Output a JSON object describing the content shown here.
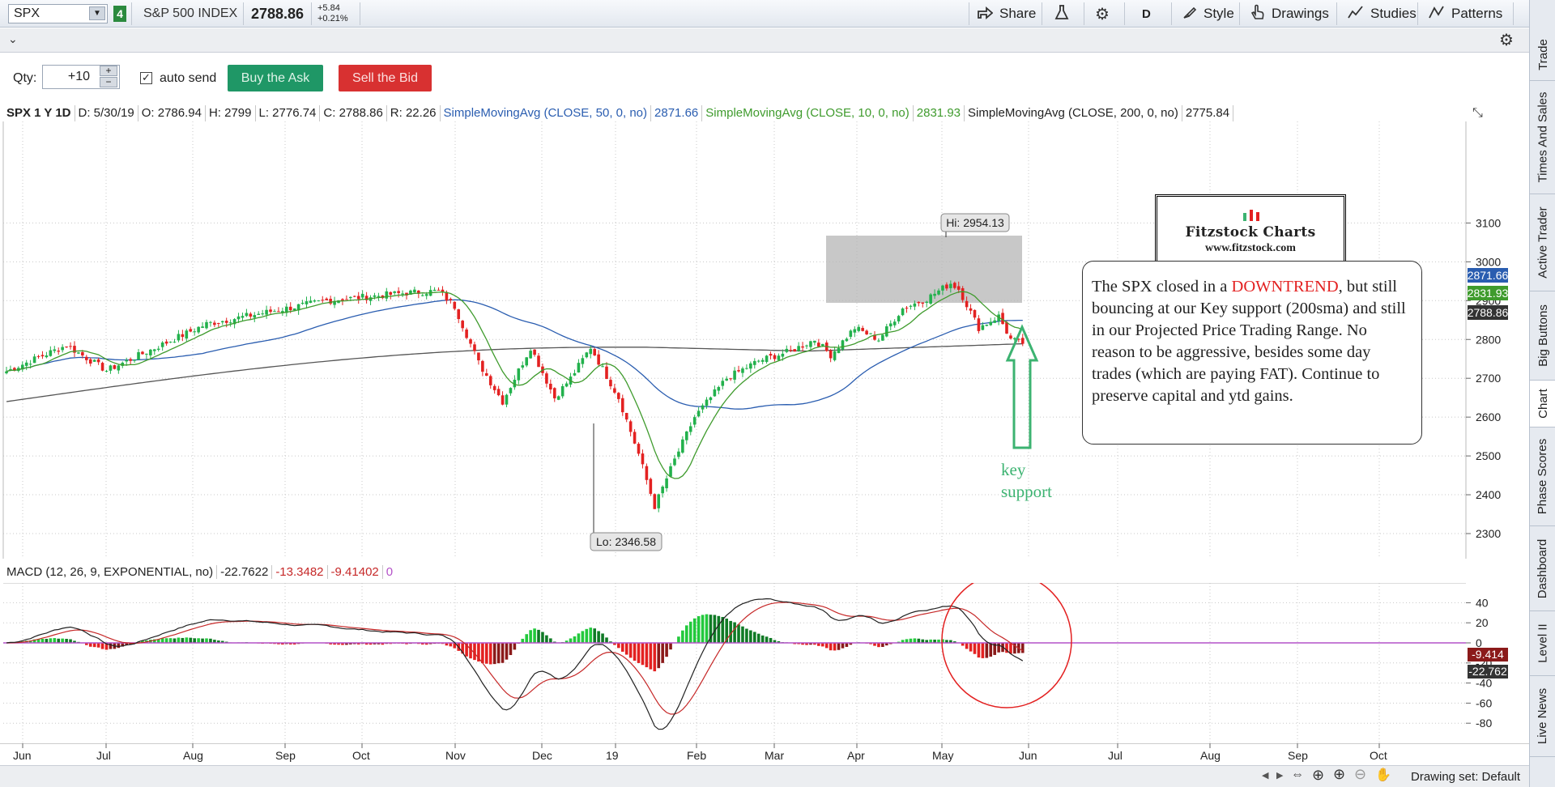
{
  "toolbar": {
    "symbol": "SPX",
    "link_number": "4",
    "description": "S&P 500 INDEX",
    "last_price": "2788.86",
    "net_change": "+5.84",
    "pct_change": "+0.21%",
    "share_label": "Share",
    "period_label": "D",
    "style_label": "Style",
    "drawings_label": "Drawings",
    "studies_label": "Studies",
    "patterns_label": "Patterns"
  },
  "order": {
    "qty_label": "Qty:",
    "qty_value": "+10",
    "auto_send_label": "auto send",
    "buy_label": "Buy the Ask",
    "sell_label": "Sell the Bid"
  },
  "info": {
    "symbol_period": "SPX 1 Y 1D",
    "date": "D: 5/30/19",
    "open": "O: 2786.94",
    "high": "H: 2799",
    "low": "L: 2776.74",
    "close": "C: 2788.86",
    "range": "R: 22.26",
    "sma50_label": "SimpleMovingAvg (CLOSE, 50, 0, no)",
    "sma50_value": "2871.66",
    "sma10_label": "SimpleMovingAvg (CLOSE, 10, 0, no)",
    "sma10_value": "2831.93",
    "sma200_label": "SimpleMovingAvg (CLOSE, 200, 0, no)",
    "sma200_value": "2775.84"
  },
  "macd_info": {
    "label": "MACD (12, 26, 9, EXPONENTIAL, no)",
    "value": "-22.7622",
    "avg": "-13.3482",
    "diff": "-9.41402",
    "zero": "0"
  },
  "annotations": {
    "hi_label": "Hi: 2954.13",
    "lo_label": "Lo: 2346.58",
    "key_support": "key support",
    "note_before": "The SPX closed in a ",
    "note_highlight": "DOWNTREND",
    "note_after": ", but still bouncing at our Key support (200sma) and still in our Projected Price Trading Range.  No reason to be aggressive, besides some day trades (which are paying FAT).  Continue to preserve capital and ytd gains.",
    "logo_title": "Fitzstock Charts",
    "logo_url": "www.fitzstock.com"
  },
  "price_badges": {
    "sma50": "2871.66",
    "sma10": "2831.93",
    "close": "2788.86",
    "macd_diff": "-9.414",
    "macd_value": "-22.762"
  },
  "colors": {
    "up": "#22b14c",
    "down": "#e32121",
    "sma50": "#2a5db0",
    "sma10": "#3f9b2d",
    "sma200": "#555555",
    "macd_value": "#222222",
    "macd_avg": "#c62828",
    "zero_line": "#b452c8"
  },
  "side_tabs": [
    "Trade",
    "Times And Sales",
    "Active Trader",
    "Big Buttons",
    "Chart",
    "Phase Scores",
    "Dashboard",
    "Level II",
    "Live News"
  ],
  "bottom": {
    "drawing_set": "Drawing set: Default"
  },
  "chart_data": [
    {
      "type": "candlestick",
      "title": "SPX 1 Y 1D",
      "x_ticks": [
        "Jun",
        "Jul",
        "Aug",
        "Sep",
        "Oct",
        "Nov",
        "Dec",
        "19",
        "Feb",
        "Mar",
        "Apr",
        "May",
        "Jun",
        "Jul",
        "Aug",
        "Sep",
        "Oct"
      ],
      "y_ticks": [
        2300,
        2400,
        2500,
        2600,
        2700,
        2800,
        2900,
        3000,
        3100
      ],
      "ylim": [
        2280,
        3200
      ],
      "grid": true,
      "series": [
        {
          "name": "SimpleMovingAvg (CLOSE, 50, 0, no)",
          "last": 2871.66
        },
        {
          "name": "SimpleMovingAvg (CLOSE, 10, 0, no)",
          "last": 2831.93
        },
        {
          "name": "SimpleMovingAvg (CLOSE, 200, 0, no)",
          "last": 2775.84
        }
      ],
      "close_anchors": [
        [
          0,
          2718
        ],
        [
          15,
          2785
        ],
        [
          25,
          2720
        ],
        [
          50,
          2840
        ],
        [
          80,
          2900
        ],
        [
          100,
          2920
        ],
        [
          108,
          2925
        ],
        [
          112,
          2885
        ],
        [
          118,
          2740
        ],
        [
          124,
          2640
        ],
        [
          131,
          2780
        ],
        [
          137,
          2650
        ],
        [
          141,
          2700
        ],
        [
          146,
          2780
        ],
        [
          153,
          2650
        ],
        [
          158,
          2505
        ],
        [
          162,
          2370
        ],
        [
          167,
          2490
        ],
        [
          172,
          2600
        ],
        [
          180,
          2700
        ],
        [
          188,
          2745
        ],
        [
          196,
          2770
        ],
        [
          202,
          2800
        ],
        [
          206,
          2760
        ],
        [
          212,
          2830
        ],
        [
          218,
          2800
        ],
        [
          224,
          2880
        ],
        [
          230,
          2905
        ],
        [
          236,
          2945
        ],
        [
          238,
          2930
        ],
        [
          243,
          2830
        ],
        [
          248,
          2860
        ],
        [
          251,
          2800
        ],
        [
          254,
          2789
        ]
      ],
      "hi": 2954.13,
      "lo": 2346.58,
      "last_close": 2788.86
    },
    {
      "type": "line",
      "title": "MACD (12, 26, 9, EXPONENTIAL, no)",
      "y_ticks": [
        40,
        20,
        0,
        -20,
        -40,
        -60,
        -80
      ],
      "ylim": [
        -82,
        44
      ],
      "series": [
        {
          "name": "Value",
          "last": -22.762
        },
        {
          "name": "Avg",
          "last": -13.3482
        },
        {
          "name": "Diff",
          "last": -9.414
        }
      ]
    }
  ]
}
